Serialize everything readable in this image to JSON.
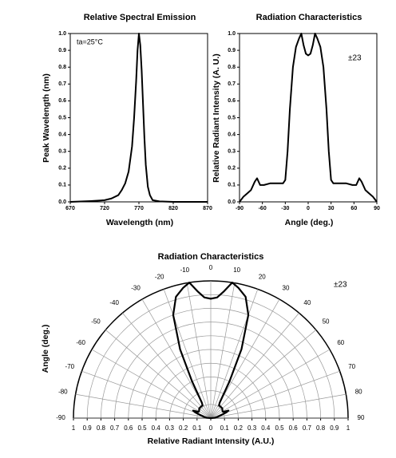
{
  "chart_data": [
    {
      "type": "line",
      "title": "Relative Spectral Emission",
      "xlabel": "Wavelength (nm)",
      "ylabel": "Peak Wavelength (nm)",
      "annotation": "ta=25°C",
      "color": "#000000",
      "x": [
        670,
        700,
        720,
        730,
        740,
        745,
        750,
        755,
        760,
        763,
        766,
        768,
        770,
        772,
        774,
        776,
        778,
        780,
        783,
        786,
        790,
        800,
        820,
        870
      ],
      "values": [
        0,
        0.005,
        0.01,
        0.02,
        0.04,
        0.07,
        0.11,
        0.18,
        0.33,
        0.5,
        0.72,
        0.9,
        1.0,
        0.93,
        0.78,
        0.58,
        0.38,
        0.22,
        0.09,
        0.04,
        0.01,
        0.003,
        0,
        0
      ],
      "xlim": [
        670,
        870
      ],
      "xticks": [
        670,
        720,
        770,
        820,
        870
      ],
      "ylim": [
        0,
        1
      ],
      "yticks": [
        {
          "value": 0,
          "label": "0.0"
        },
        0.1,
        0.2,
        0.3,
        0.4,
        0.5,
        0.6,
        0.7,
        0.8,
        0.9,
        {
          "value": 1,
          "label": "1.0"
        }
      ],
      "grid": false
    },
    {
      "type": "line",
      "title": "Radiation Characteristics",
      "xlabel": "Angle (deg.)",
      "ylabel": "Relative Radiant Intensity (A. U.)",
      "annotation": "±23",
      "color": "#000000",
      "x": [
        -90,
        -85,
        -80,
        -75,
        -70,
        -67,
        -63,
        -58,
        -50,
        -40,
        -33,
        -30,
        -27,
        -24,
        -20,
        -16,
        -12,
        -9,
        -6,
        -3,
        0,
        3,
        6,
        9,
        12,
        16,
        20,
        24,
        27,
        30,
        33,
        40,
        50,
        58,
        63,
        67,
        70,
        75,
        80,
        85,
        90
      ],
      "values": [
        0.0,
        0.03,
        0.05,
        0.07,
        0.12,
        0.14,
        0.1,
        0.1,
        0.11,
        0.11,
        0.11,
        0.13,
        0.3,
        0.55,
        0.8,
        0.92,
        0.97,
        1.0,
        0.93,
        0.88,
        0.87,
        0.88,
        0.93,
        1.0,
        0.97,
        0.92,
        0.8,
        0.55,
        0.3,
        0.13,
        0.11,
        0.11,
        0.11,
        0.1,
        0.1,
        0.14,
        0.12,
        0.07,
        0.05,
        0.03,
        0.0
      ],
      "xlim": [
        -90,
        90
      ],
      "xticks": [
        -90,
        -60,
        -30,
        0,
        30,
        60,
        90
      ],
      "ylim": [
        0,
        1
      ],
      "yticks": [
        {
          "value": 0,
          "label": "0.0"
        },
        0.1,
        0.2,
        0.3,
        0.4,
        0.5,
        0.6,
        0.7,
        0.8,
        0.9,
        {
          "value": 1,
          "label": "1.0"
        }
      ],
      "grid": false
    },
    {
      "type": "polar",
      "title": "Radiation Characteristics",
      "xlabel": "Relative Radiant Intensity (A.U.)",
      "ylabel": "Angle (deg.)",
      "annotation": "±23",
      "color": "#000000",
      "theta": [
        -90,
        -85,
        -80,
        -75,
        -70,
        -67,
        -63,
        -58,
        -50,
        -40,
        -33,
        -30,
        -27,
        -24,
        -20,
        -16,
        -12,
        -9,
        -6,
        -3,
        0,
        3,
        6,
        9,
        12,
        16,
        20,
        24,
        27,
        30,
        33,
        40,
        50,
        58,
        63,
        67,
        70,
        75,
        80,
        85,
        90
      ],
      "r": [
        0.0,
        0.03,
        0.05,
        0.07,
        0.12,
        0.14,
        0.1,
        0.1,
        0.11,
        0.11,
        0.11,
        0.13,
        0.3,
        0.55,
        0.8,
        0.92,
        0.97,
        1.0,
        0.93,
        0.88,
        0.87,
        0.88,
        0.93,
        1.0,
        0.97,
        0.92,
        0.8,
        0.55,
        0.3,
        0.13,
        0.11,
        0.11,
        0.11,
        0.1,
        0.1,
        0.14,
        0.12,
        0.07,
        0.05,
        0.03,
        0.0
      ],
      "rlim": [
        0,
        1
      ],
      "thetaticks": [
        -90,
        -80,
        -70,
        -60,
        -50,
        -40,
        -30,
        -20,
        -10,
        0,
        10,
        20,
        30,
        40,
        50,
        60,
        70,
        80,
        90
      ],
      "xlim": [
        -1,
        1
      ],
      "xticks": [
        {
          "value": -1,
          "label": "1"
        },
        {
          "value": -0.9,
          "label": "0.9"
        },
        {
          "value": -0.8,
          "label": "0.8"
        },
        {
          "value": -0.7,
          "label": "0.7"
        },
        {
          "value": -0.6,
          "label": "0.6"
        },
        {
          "value": -0.5,
          "label": "0.5"
        },
        {
          "value": -0.4,
          "label": "0.4"
        },
        {
          "value": -0.3,
          "label": "0.3"
        },
        {
          "value": -0.2,
          "label": "0.2"
        },
        {
          "value": -0.1,
          "label": "0.1"
        },
        0,
        0.1,
        0.2,
        0.3,
        0.4,
        0.5,
        0.6,
        0.7,
        0.8,
        0.9,
        1
      ],
      "grid": true
    }
  ]
}
